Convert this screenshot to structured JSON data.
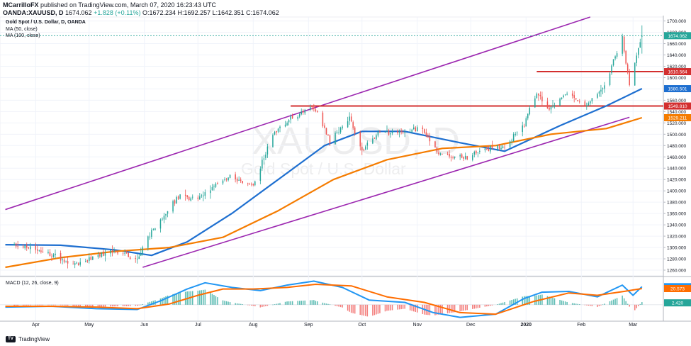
{
  "header": {
    "publisher": "MCarrilloFX",
    "published_text": " published on TradingView.com, March 07, 2020 16:23:43 UTC",
    "symbol": "OANDA:XAUUSD, D",
    "ohlc": "1674.062",
    "change": "+1.828 (+0.11%)",
    "open": "O:1672.234",
    "high": "H:1692.257",
    "low": "L:1642.351",
    "close": "C:1674.062"
  },
  "legend": {
    "title": "Gold Spot / U.S. Dollar, D, OANDA",
    "ma50": "MA (50, close)",
    "ma100": "MA (100, close)",
    "macd": "MACD (12, 26, close, 9)"
  },
  "watermark": {
    "symbol": "XAUUSD, D",
    "name": "Gold Spot / U.S. Dollar"
  },
  "footer": {
    "brand": "TradingView",
    "logo_text": "TV"
  },
  "colors": {
    "up": "#26a69a",
    "down": "#ef5350",
    "ma50": "#1e6fd0",
    "ma100": "#f57c00",
    "channel": "#9c27b0",
    "support": "#d32f2f",
    "macd": "#2196f3",
    "signal": "#ff6d00"
  },
  "chart_data": [
    {
      "type": "candlestick",
      "title": "Gold Spot / U.S. Dollar, D, OANDA",
      "x_tick_labels": [
        "Apr",
        "May",
        "Jun",
        "Jul",
        "Aug",
        "Sep",
        "Oct",
        "Nov",
        "Dec",
        "2020",
        "Feb",
        "Mar"
      ],
      "y_tick_labels": [
        "1260.000",
        "1280.000",
        "1300.000",
        "1320.000",
        "1340.000",
        "1360.000",
        "1380.000",
        "1400.000",
        "1420.000",
        "1440.000",
        "1460.000",
        "1480.000",
        "1500.000",
        "1520.000",
        "1540.000",
        "1560.000",
        "1580.000",
        "1600.000",
        "1620.000",
        "1640.000",
        "1660.000",
        "1680.000",
        "1700.000"
      ],
      "ylim": [
        1250,
        1707
      ],
      "price_labels": [
        {
          "label": "1674.062",
          "value": 1674.062,
          "color": "#26a69a"
        },
        {
          "label": "1610.564",
          "value": 1610.564,
          "color": "#d32f2f"
        },
        {
          "label": "1580.501",
          "value": 1580.501,
          "color": "#1e6fd0"
        },
        {
          "label": "1549.810",
          "value": 1549.81,
          "color": "#d32f2f"
        },
        {
          "label": "1529.211",
          "value": 1529.211,
          "color": "#f57c00"
        }
      ],
      "key_points": [
        {
          "date": "2019-03-20",
          "price": 1305
        },
        {
          "date": "2019-04-05",
          "price": 1294
        },
        {
          "date": "2019-04-23",
          "price": 1270
        },
        {
          "date": "2019-05-15",
          "price": 1296
        },
        {
          "date": "2019-05-28",
          "price": 1279
        },
        {
          "date": "2019-06-05",
          "price": 1330
        },
        {
          "date": "2019-06-20",
          "price": 1390
        },
        {
          "date": "2019-07-01",
          "price": 1385
        },
        {
          "date": "2019-07-18",
          "price": 1425
        },
        {
          "date": "2019-08-01",
          "price": 1410
        },
        {
          "date": "2019-08-12",
          "price": 1500
        },
        {
          "date": "2019-08-23",
          "price": 1530
        },
        {
          "date": "2019-09-04",
          "price": 1548
        },
        {
          "date": "2019-09-13",
          "price": 1488
        },
        {
          "date": "2019-09-24",
          "price": 1530
        },
        {
          "date": "2019-10-01",
          "price": 1472
        },
        {
          "date": "2019-10-10",
          "price": 1500
        },
        {
          "date": "2019-10-25",
          "price": 1505
        },
        {
          "date": "2019-11-04",
          "price": 1512
        },
        {
          "date": "2019-11-13",
          "price": 1462
        },
        {
          "date": "2019-11-29",
          "price": 1460
        },
        {
          "date": "2019-12-11",
          "price": 1475
        },
        {
          "date": "2019-12-20",
          "price": 1478
        },
        {
          "date": "2019-12-31",
          "price": 1518
        },
        {
          "date": "2020-01-07",
          "price": 1575
        },
        {
          "date": "2020-01-14",
          "price": 1545
        },
        {
          "date": "2020-01-24",
          "price": 1571
        },
        {
          "date": "2020-02-05",
          "price": 1552
        },
        {
          "date": "2020-02-14",
          "price": 1585
        },
        {
          "date": "2020-02-24",
          "price": 1672
        },
        {
          "date": "2020-02-28",
          "price": 1585
        },
        {
          "date": "2020-03-03",
          "price": 1640
        },
        {
          "date": "2020-03-06",
          "price": 1674
        }
      ],
      "series": [
        {
          "name": "MA (50, close)",
          "color": "#1e6fd0",
          "points": [
            [
              "2019-03-15",
              1305
            ],
            [
              "2019-04-15",
              1304
            ],
            [
              "2019-05-15",
              1296
            ],
            [
              "2019-06-05",
              1286
            ],
            [
              "2019-06-25",
              1310
            ],
            [
              "2019-07-20",
              1360
            ],
            [
              "2019-08-15",
              1420
            ],
            [
              "2019-09-10",
              1480
            ],
            [
              "2019-10-01",
              1505
            ],
            [
              "2019-10-25",
              1505
            ],
            [
              "2019-11-25",
              1485
            ],
            [
              "2019-12-20",
              1470
            ],
            [
              "2020-01-20",
              1515
            ],
            [
              "2020-02-15",
              1550
            ],
            [
              "2020-03-06",
              1580.5
            ]
          ]
        },
        {
          "name": "MA (100, close)",
          "color": "#f57c00",
          "points": [
            [
              "2019-03-15",
              1265
            ],
            [
              "2019-04-15",
              1282
            ],
            [
              "2019-05-15",
              1293
            ],
            [
              "2019-06-15",
              1300
            ],
            [
              "2019-07-15",
              1318
            ],
            [
              "2019-08-15",
              1365
            ],
            [
              "2019-09-15",
              1420
            ],
            [
              "2019-10-15",
              1455
            ],
            [
              "2019-11-15",
              1475
            ],
            [
              "2019-12-15",
              1480
            ],
            [
              "2020-01-15",
              1500
            ],
            [
              "2020-02-15",
              1510
            ],
            [
              "2020-03-06",
              1529.2
            ]
          ]
        }
      ],
      "trendlines": [
        {
          "name": "channel-upper",
          "from": [
            "2019-03-15",
            1367
          ],
          "to": [
            "2020-02-06",
            1707
          ]
        },
        {
          "name": "channel-lower",
          "from": [
            "2019-05-31",
            1265
          ],
          "to": [
            "2020-02-28",
            1530
          ]
        },
        {
          "name": "resistance-1549",
          "from": [
            "2019-08-22",
            1549.81
          ],
          "to": [
            "2020-03-18",
            1549.81
          ]
        },
        {
          "name": "resistance-1610",
          "from": [
            "2020-01-07",
            1610.564
          ],
          "to": [
            "2020-03-18",
            1610.564
          ]
        }
      ]
    },
    {
      "type": "line",
      "title": "MACD (12, 26, close, 9)",
      "price_labels": [
        {
          "label": "22.994",
          "value": 22.994,
          "color": "#2196f3"
        },
        {
          "label": "20.573",
          "value": 20.573,
          "color": "#ff6d00"
        },
        {
          "label": "2.420",
          "value": 2.42,
          "color": "#26a69a"
        }
      ],
      "ylim": [
        -20,
        35
      ],
      "series": [
        {
          "name": "MACD",
          "color": "#2196f3",
          "points": [
            [
              "2019-03-15",
              -3
            ],
            [
              "2019-04-10",
              -2
            ],
            [
              "2019-05-05",
              -5
            ],
            [
              "2019-05-28",
              -6
            ],
            [
              "2019-06-10",
              5
            ],
            [
              "2019-06-25",
              20
            ],
            [
              "2019-07-05",
              28
            ],
            [
              "2019-07-20",
              22
            ],
            [
              "2019-08-05",
              18
            ],
            [
              "2019-08-20",
              25
            ],
            [
              "2019-09-04",
              30
            ],
            [
              "2019-09-20",
              22
            ],
            [
              "2019-10-05",
              6
            ],
            [
              "2019-10-25",
              3
            ],
            [
              "2019-11-10",
              -10
            ],
            [
              "2019-11-25",
              -16
            ],
            [
              "2019-12-15",
              -12
            ],
            [
              "2019-12-31",
              8
            ],
            [
              "2020-01-10",
              16
            ],
            [
              "2020-01-25",
              17
            ],
            [
              "2020-02-10",
              10
            ],
            [
              "2020-02-24",
              25
            ],
            [
              "2020-03-01",
              12
            ],
            [
              "2020-03-06",
              22.994
            ]
          ]
        },
        {
          "name": "Signal",
          "color": "#ff6d00",
          "points": [
            [
              "2019-03-15",
              -2
            ],
            [
              "2019-04-10",
              -2
            ],
            [
              "2019-05-05",
              -3
            ],
            [
              "2019-05-28",
              -5
            ],
            [
              "2019-06-15",
              1
            ],
            [
              "2019-07-01",
              12
            ],
            [
              "2019-07-15",
              20
            ],
            [
              "2019-08-01",
              20
            ],
            [
              "2019-08-20",
              22
            ],
            [
              "2019-09-05",
              26
            ],
            [
              "2019-09-25",
              24
            ],
            [
              "2019-10-15",
              10
            ],
            [
              "2019-11-05",
              3
            ],
            [
              "2019-11-25",
              -10
            ],
            [
              "2019-12-15",
              -12
            ],
            [
              "2020-01-05",
              4
            ],
            [
              "2020-01-25",
              15
            ],
            [
              "2020-02-10",
              12
            ],
            [
              "2020-02-25",
              17
            ],
            [
              "2020-03-06",
              20.573
            ]
          ]
        }
      ]
    }
  ]
}
